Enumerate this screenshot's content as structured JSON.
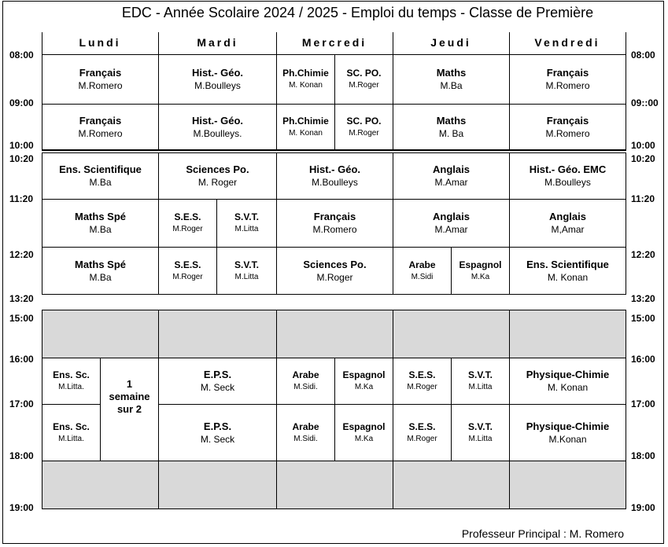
{
  "title": "EDC - Année Scolaire 2024 / 2025  - Emploi du temps -  Classe de Première",
  "footer": "Professeur Principal : M. Romero",
  "days": [
    "Lundi",
    "Mardi",
    "Mercredi",
    "Jeudi",
    "Vendredi"
  ],
  "times_left": [
    "08:00",
    "09:00",
    "10:00",
    "10:20",
    "11:20",
    "12:20",
    "13:20",
    "15:00",
    "16:00",
    "17:00",
    "18:00",
    "19:00"
  ],
  "times_right": [
    "08:00",
    "09::00",
    "10:00",
    "10:20",
    "11:20",
    "12:20",
    "13:20",
    "15:00",
    "16:00",
    "17:00",
    "18:00",
    "19:00"
  ],
  "lessons": {
    "c01": {
      "subject": "Français",
      "teacher": "M.Romero"
    },
    "c02": {
      "subject": "Hist.- Géo.",
      "teacher": "M.Boulleys"
    },
    "c03": {
      "subject": "Ph.Chimie",
      "teacher": "M. Konan"
    },
    "c04": {
      "subject": "SC. PO.",
      "teacher": "M.Roger"
    },
    "c05": {
      "subject": "Maths",
      "teacher": "M.Ba"
    },
    "c06": {
      "subject": "Français",
      "teacher": "M.Romero"
    },
    "c07": {
      "subject": "Français",
      "teacher": "M.Romero"
    },
    "c08": {
      "subject": "Hist.- Géo.",
      "teacher": "M.Boulleys."
    },
    "c09": {
      "subject": "Ph.Chimie",
      "teacher": "M. Konan"
    },
    "c10": {
      "subject": "SC. PO.",
      "teacher": "M.Roger"
    },
    "c11": {
      "subject": "Maths",
      "teacher": "M. Ba"
    },
    "c12": {
      "subject": "Français",
      "teacher": "M.Romero"
    },
    "c13": {
      "subject": "Ens. Scientifique",
      "teacher": "M.Ba"
    },
    "c14": {
      "subject": "Sciences Po.",
      "teacher": "M. Roger"
    },
    "c15": {
      "subject": "Hist.- Géo.",
      "teacher": "M.Boulleys"
    },
    "c16": {
      "subject": "Anglais",
      "teacher": "M.Amar"
    },
    "c17": {
      "subject": "Hist.- Géo. EMC",
      "teacher": "M.Boulleys"
    },
    "c18": {
      "subject": "Maths Spé",
      "teacher": "M.Ba"
    },
    "c19": {
      "subject": "S.E.S.",
      "teacher": "M.Roger"
    },
    "c20": {
      "subject": "S.V.T.",
      "teacher": "M.Litta"
    },
    "c21": {
      "subject": "Français",
      "teacher": "M.Romero"
    },
    "c22": {
      "subject": "Anglais",
      "teacher": "M.Amar"
    },
    "c23": {
      "subject": "Anglais",
      "teacher": "M,Amar"
    },
    "c24": {
      "subject": "Maths Spé",
      "teacher": "M.Ba"
    },
    "c25": {
      "subject": "S.E.S.",
      "teacher": "M.Roger"
    },
    "c26": {
      "subject": "S.V.T.",
      "teacher": "M.Litta"
    },
    "c27": {
      "subject": "Sciences Po.",
      "teacher": "M.Roger"
    },
    "c28": {
      "subject": "Arabe",
      "teacher": "M.Sidi"
    },
    "c29": {
      "subject": "Espagnol",
      "teacher": "M.Ka"
    },
    "c30": {
      "subject": "Ens. Scientifique",
      "teacher": "M. Konan"
    },
    "c31": {
      "subject": "Ens. Sc.",
      "teacher": "M.Litta."
    },
    "c32": {
      "subject": "1 semaine sur 2",
      "teacher": ""
    },
    "c33": {
      "subject": "E.P.S.",
      "teacher": "M. Seck"
    },
    "c34": {
      "subject": "Arabe",
      "teacher": "M.Sidi."
    },
    "c35": {
      "subject": "Espagnol",
      "teacher": "M.Ka"
    },
    "c36": {
      "subject": "S.E.S.",
      "teacher": "M.Roger"
    },
    "c37": {
      "subject": "S.V.T.",
      "teacher": "M.Litta"
    },
    "c38": {
      "subject": "Physique-Chimie",
      "teacher": "M. Konan"
    },
    "c39": {
      "subject": "Ens. Sc.",
      "teacher": "M.Litta."
    },
    "c40": {
      "subject": "E.P.S.",
      "teacher": "M. Seck"
    },
    "c41": {
      "subject": "Arabe",
      "teacher": "M.Sidi."
    },
    "c42": {
      "subject": "Espagnol",
      "teacher": "M.Ka"
    },
    "c43": {
      "subject": "S.E.S.",
      "teacher": "M.Roger"
    },
    "c44": {
      "subject": "S.V.T.",
      "teacher": "M.Litta"
    },
    "c45": {
      "subject": "Physique-Chimie",
      "teacher": "M.Konan"
    }
  }
}
